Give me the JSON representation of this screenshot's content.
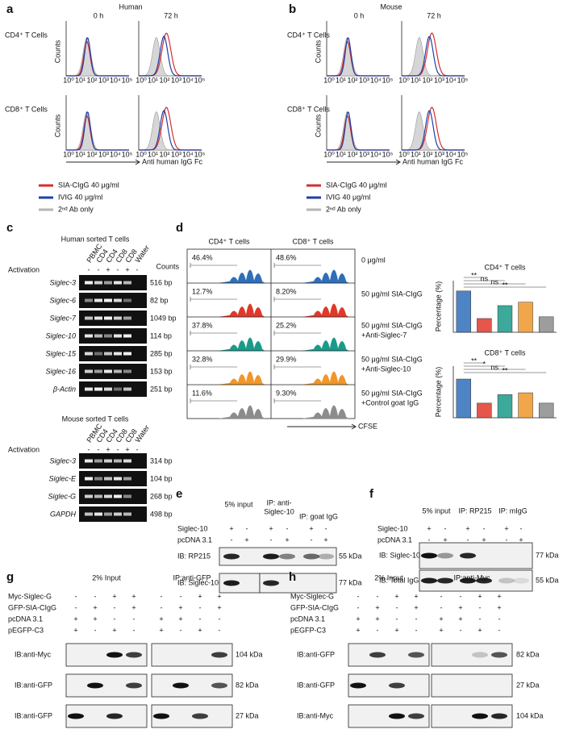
{
  "a": {
    "label": "a",
    "species": "Human",
    "times": [
      "0 h",
      "72 h"
    ],
    "rows": [
      "CD4⁺ T Cells",
      "CD8⁺ T Cells"
    ],
    "y_label": "Counts",
    "x_label": "Anti human IgG Fc",
    "x_tick_labels": [
      "10⁰",
      "10¹",
      "10²",
      "10³",
      "10⁴",
      "10⁵"
    ],
    "legend": [
      {
        "name": "SIA-CIgG  40 μg/ml",
        "color": "#d32f2f"
      },
      {
        "name": "IVIG  40 μg/ml",
        "color": "#1f3fa8"
      },
      {
        "name": "2ⁿᵈ Ab only",
        "color": "#b5b5b5"
      }
    ]
  },
  "b": {
    "label": "b",
    "species": "Mouse",
    "times": [
      "0 h",
      "72 h"
    ],
    "rows": [
      "CD4⁺ T Cells",
      "CD8⁺ T Cells"
    ],
    "y_label": "Counts",
    "x_label": "Anti human IgG Fc",
    "x_tick_labels": [
      "10⁰",
      "10¹",
      "10²",
      "10³",
      "10⁴",
      "10⁵"
    ],
    "legend": [
      {
        "name": "SIA-CIgG  40 μg/ml",
        "color": "#d32f2f"
      },
      {
        "name": "IVIG  40 μg/ml",
        "color": "#1f3fa8"
      },
      {
        "name": "2ⁿᵈ Ab only",
        "color": "#b5b5b5"
      }
    ]
  },
  "c": {
    "label": "c",
    "human": {
      "title": "Human sorted T cells",
      "lanes": [
        "PBMC",
        "CD4",
        "CD4",
        "CD8",
        "CD8",
        "Water"
      ],
      "activation_label": "Activation",
      "activation": [
        "-",
        "-",
        "+",
        "-",
        "+",
        "-"
      ],
      "genes": [
        {
          "name": "Siglec-3",
          "size": "516 bp"
        },
        {
          "name": "Siglec-6",
          "size": "82 bp"
        },
        {
          "name": "Siglec-7",
          "size": "1049 bp"
        },
        {
          "name": "Siglec-10",
          "size": "114 bp"
        },
        {
          "name": "Siglec-15",
          "size": "285 bp"
        },
        {
          "name": "Siglec-16",
          "size": "153 bp"
        },
        {
          "name": "β-Actin",
          "size": "251 bp"
        }
      ]
    },
    "mouse": {
      "title": "Mouse sorted T cells",
      "lanes": [
        "PBMC",
        "CD4",
        "CD4",
        "CD8",
        "CD8",
        "Water"
      ],
      "activation_label": "Activation",
      "activation": [
        "-",
        "-",
        "+",
        "-",
        "+",
        "-"
      ],
      "genes": [
        {
          "name": "Siglec-3",
          "size": "314 bp"
        },
        {
          "name": "Siglec-E",
          "size": "104 bp"
        },
        {
          "name": "Siglec-G",
          "size": "268 bp"
        },
        {
          "name": "GAPDH",
          "size": "498 bp"
        }
      ]
    }
  },
  "d": {
    "label": "d",
    "columns": [
      "CD4⁺ T cells",
      "CD8⁺ T cells"
    ],
    "y_label": "Counts",
    "x_label": "CFSE",
    "rows": [
      {
        "cd4": "46.4%",
        "cd8": "48.6%",
        "condition": [
          "0 μg/ml"
        ],
        "color": "#2f6fba"
      },
      {
        "cd4": "12.7%",
        "cd8": "8.20%",
        "condition": [
          "50 μg/ml SIA-CIgG"
        ],
        "color": "#e0392b"
      },
      {
        "cd4": "37.8%",
        "cd8": "25.2%",
        "condition": [
          "50 μg/ml SIA-CIgG",
          "+Anti-Siglec-7"
        ],
        "color": "#1a9a8a"
      },
      {
        "cd4": "32.8%",
        "cd8": "29.9%",
        "condition": [
          "50 μg/ml SIA-CIgG",
          "+Anti-Siglec-10"
        ],
        "color": "#f0962a"
      },
      {
        "cd4": "11.6%",
        "cd8": "9.30%",
        "condition": [
          "50 μg/ml SIA-CIgG",
          "+Control goat IgG"
        ],
        "color": "#8c8c8c"
      }
    ],
    "bar_charts": [
      {
        "title": "CD4⁺ T cells",
        "y_label": "Percentage (%)",
        "ylim": [
          0,
          60
        ],
        "values": [
          48,
          16,
          31,
          35,
          18
        ],
        "sig": [
          "**",
          "ns",
          "ns",
          "**"
        ]
      },
      {
        "title": "CD8⁺ T cells",
        "y_label": "Percentage (%)",
        "ylim": [
          0,
          60
        ],
        "values": [
          45,
          17,
          27,
          29,
          17
        ],
        "sig": [
          "**",
          "*",
          "ns",
          "**"
        ]
      }
    ]
  },
  "e": {
    "label": "e",
    "headers": [
      [
        "5% input"
      ],
      [
        "IP: anti-",
        "Siglec-10"
      ],
      [
        "IP: goat IgG"
      ]
    ],
    "conditions": [
      {
        "name": "Siglec-10",
        "signs": [
          "+",
          "-",
          "+",
          "-",
          "+",
          "-"
        ]
      },
      {
        "name": "pcDNA 3.1",
        "signs": [
          "-",
          "+",
          "-",
          "+",
          "-",
          "+"
        ]
      }
    ],
    "blots": [
      {
        "name": "IB: RP215",
        "size": "55 kDa"
      },
      {
        "name": "IB: Siglec-10",
        "size": "77 kDa"
      }
    ]
  },
  "f": {
    "label": "f",
    "headers": [
      [
        "5% input"
      ],
      [
        "IP: RP215"
      ],
      [
        "IP: mIgG"
      ]
    ],
    "conditions": [
      {
        "name": "Siglec-10",
        "signs": [
          "+",
          "-",
          "+",
          "-",
          "+",
          "-"
        ]
      },
      {
        "name": "pcDNA 3.1",
        "signs": [
          "-",
          "+",
          "-",
          "+",
          "-",
          "+"
        ]
      }
    ],
    "blots": [
      {
        "name": "IB: Siglec-10",
        "size": "77 kDa"
      },
      {
        "name": "IB: Total IgG",
        "size": "55 kDa"
      }
    ]
  },
  "g": {
    "label": "g",
    "headers": [
      "2% Input",
      "IP:anti-GFP"
    ],
    "conditions": [
      {
        "name": "Myc-Siglec-G",
        "signs": [
          "-",
          "-",
          "+",
          "+",
          "-",
          "-",
          "+",
          "+"
        ]
      },
      {
        "name": "GFP-SIA-CIgG",
        "signs": [
          "-",
          "+",
          "-",
          "+",
          "-",
          "+",
          "-",
          "+"
        ]
      },
      {
        "name": "pcDNA 3.1",
        "signs": [
          "+",
          "+",
          "-",
          "-",
          "+",
          "+",
          "-",
          "-"
        ]
      },
      {
        "name": "pEGFP-C3",
        "signs": [
          "+",
          "-",
          "+",
          "-",
          "+",
          "-",
          "+",
          "-"
        ]
      }
    ],
    "blots": [
      {
        "name": "IB:anti-Myc",
        "size": "104 kDa"
      },
      {
        "name": "IB:anti-GFP",
        "size": "82 kDa"
      },
      {
        "name": "IB:anti-GFP",
        "size": "27 kDa"
      }
    ]
  },
  "h": {
    "label": "h",
    "headers": [
      "2% Input",
      "IP:anti-Myc"
    ],
    "conditions": [
      {
        "name": "Myc-Siglec-G",
        "signs": [
          "-",
          "-",
          "+",
          "+",
          "-",
          "-",
          "+",
          "+"
        ]
      },
      {
        "name": "GFP-SIA-CIgG",
        "signs": [
          "-",
          "+",
          "-",
          "+",
          "-",
          "+",
          "-",
          "+"
        ]
      },
      {
        "name": "pcDNA 3.1",
        "signs": [
          "+",
          "+",
          "-",
          "-",
          "+",
          "+",
          "-",
          "-"
        ]
      },
      {
        "name": "pEGFP-C3",
        "signs": [
          "+",
          "-",
          "+",
          "-",
          "+",
          "-",
          "+",
          "-"
        ]
      }
    ],
    "blots": [
      {
        "name": "IB:anti-GFP",
        "size": "82 kDa"
      },
      {
        "name": "IB:anti-GFP",
        "size": "27 kDa"
      },
      {
        "name": "IB:anti-Myc",
        "size": "104 kDa"
      }
    ]
  }
}
